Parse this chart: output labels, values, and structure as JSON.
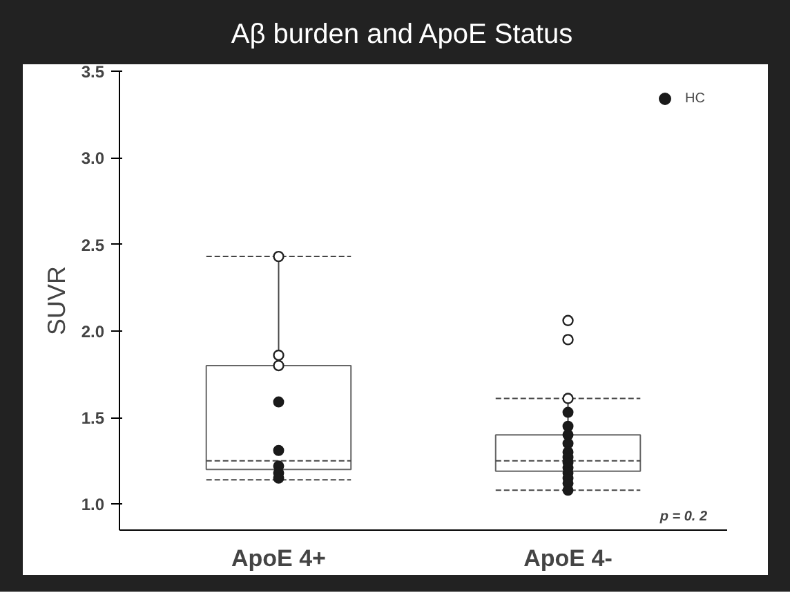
{
  "chart_data": {
    "type": "box",
    "title": "Aβ burden and ApoE Status",
    "ylabel": "SUVR",
    "categories": [
      "ApoE 4+",
      "ApoE 4-"
    ],
    "boxes": [
      {
        "low": 1.14,
        "q1": 1.2,
        "median": 1.25,
        "q3": 1.8,
        "high": 2.43,
        "outliers": [
          2.43,
          1.86,
          1.8
        ]
      },
      {
        "low": 1.08,
        "q1": 1.19,
        "median": 1.25,
        "q3": 1.4,
        "high": 1.61,
        "outliers": [
          2.06,
          1.95,
          1.61
        ]
      }
    ],
    "series": [
      {
        "name": "HC",
        "type": "scatter",
        "color": "#1a1a1a",
        "x": [
          "ApoE 4+",
          "ApoE 4+",
          "ApoE 4+",
          "ApoE 4+",
          "ApoE 4+",
          "ApoE 4-",
          "ApoE 4-",
          "ApoE 4-",
          "ApoE 4-",
          "ApoE 4-",
          "ApoE 4-",
          "ApoE 4-",
          "ApoE 4-",
          "ApoE 4-",
          "ApoE 4-",
          "ApoE 4-",
          "ApoE 4-"
        ],
        "values": [
          1.59,
          1.31,
          1.22,
          1.18,
          1.15,
          1.53,
          1.45,
          1.4,
          1.35,
          1.3,
          1.27,
          1.24,
          1.21,
          1.18,
          1.15,
          1.12,
          1.08
        ]
      }
    ],
    "ylim": [
      0.85,
      3.5
    ],
    "yticks": [
      {
        "value": 1,
        "label": "1.0"
      },
      {
        "value": 1.5,
        "label": "1.5"
      },
      {
        "value": 2,
        "label": "2.0"
      },
      {
        "value": 2.5,
        "label": "2.5"
      },
      {
        "value": 3,
        "label": "3.0"
      },
      {
        "value": 3.5,
        "label": "3.5"
      }
    ],
    "legend": "top right",
    "marker": "circle",
    "grid": false,
    "annotations": [
      "p = 0. 2"
    ]
  }
}
